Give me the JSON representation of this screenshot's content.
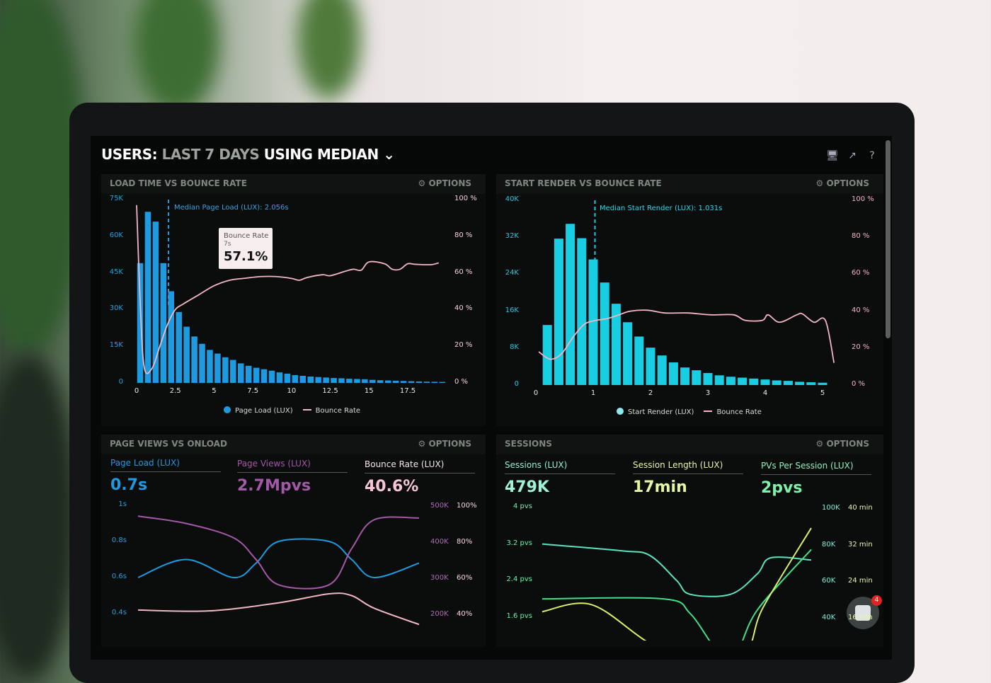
{
  "header": {
    "title_prefix": "USERS:",
    "title_range": "LAST 7 DAYS",
    "title_mid": "USING",
    "title_stat": "MEDIAN",
    "icons": [
      "monitor-icon",
      "share-icon",
      "help-icon"
    ]
  },
  "options_label": "⚙ OPTIONS",
  "colors": {
    "blue": "#1e9be0",
    "cyan": "#17c9e0",
    "pink": "#f2b6c4",
    "purple": "#a458a8",
    "teal": "#59e3c0",
    "green": "#3fe08a",
    "yellow": "#d8f06a"
  },
  "chat": {
    "badge": "4"
  },
  "chart_data": [
    {
      "type": "bar",
      "title": "LOAD TIME VS BOUNCE RATE",
      "annotation": "Median Page Load (LUX): 2.056s",
      "median": 2.056,
      "x_ticks": [
        "0",
        "2.5",
        "5",
        "7.5",
        "10",
        "12.5",
        "15",
        "17.5"
      ],
      "y_ticks": [
        "0",
        "15K",
        "30K",
        "45K",
        "60K",
        "75K"
      ],
      "y2_ticks": [
        "0 %",
        "20 %",
        "40 %",
        "60 %",
        "80 %",
        "100 %"
      ],
      "xlim": [
        0,
        19.8
      ],
      "ylim": [
        0,
        75000
      ],
      "y2lim": [
        0,
        100
      ],
      "legend": [
        "Page Load (LUX)",
        "Bounce Rate"
      ],
      "legend_placement": "bottom",
      "tooltip": {
        "series": "Bounce Rate",
        "x": "7s",
        "value": "57.1%"
      },
      "bars": {
        "name": "Page Load (LUX)",
        "x_start": 0,
        "x_step": 0.5,
        "values": [
          49000,
          70000,
          66000,
          49000,
          37500,
          29000,
          23000,
          19000,
          16000,
          13500,
          12000,
          10500,
          9400,
          8000,
          7000,
          6200,
          5600,
          5000,
          4300,
          3800,
          3200,
          2900,
          2600,
          2400,
          2200,
          2000,
          1900,
          1700,
          1600,
          1500,
          1250,
          1100,
          1000,
          900,
          800,
          700,
          600,
          500,
          450,
          400
        ]
      },
      "line": {
        "name": "Bounce Rate",
        "x": [
          0,
          0.25,
          0.5,
          1,
          1.5,
          2,
          2.5,
          3,
          4,
          5,
          6,
          7,
          8,
          9,
          10,
          10.5,
          11,
          12,
          12.5,
          13.5,
          14,
          14.5,
          15,
          16,
          16.5,
          17,
          17.5,
          18,
          19,
          19.5
        ],
        "y": [
          97,
          40,
          8,
          8,
          20,
          32,
          40,
          43,
          48,
          53,
          56,
          57.1,
          58,
          58,
          57,
          56,
          57.5,
          59,
          58.5,
          61,
          62,
          61.5,
          66,
          65,
          62,
          62,
          65,
          64.7,
          64.5,
          65.5
        ]
      }
    },
    {
      "type": "bar",
      "title": "START RENDER VS BOUNCE RATE",
      "annotation": "Median Start Render (LUX): 1.031s",
      "median": 1.031,
      "x_ticks": [
        "0",
        "1",
        "2",
        "3",
        "4",
        "5"
      ],
      "y_ticks": [
        "0",
        "8K",
        "16K",
        "24K",
        "32K",
        "40K"
      ],
      "y2_ticks": [
        "0 %",
        "20 %",
        "40 %",
        "60 %",
        "80 %",
        "100 %"
      ],
      "xlim": [
        0,
        5.2
      ],
      "ylim": [
        0,
        40000
      ],
      "y2lim": [
        0,
        100
      ],
      "legend": [
        "Start Render (LUX)",
        "Bounce Rate"
      ],
      "legend_placement": "bottom",
      "bars": {
        "name": "Start Render (LUX)",
        "x_start": 0.2,
        "x_step": 0.2,
        "values": [
          13000,
          31700,
          34900,
          31800,
          27200,
          22200,
          17600,
          13600,
          10500,
          8100,
          6400,
          4900,
          3800,
          3200,
          2600,
          2100,
          1800,
          1600,
          1400,
          1200,
          1000,
          900,
          700,
          600,
          500
        ]
      },
      "line": {
        "name": "Bounce Rate",
        "x": [
          0.05,
          0.25,
          0.45,
          0.65,
          0.85,
          1.05,
          1.25,
          1.45,
          1.65,
          1.95,
          2.25,
          2.65,
          3.05,
          3.45,
          3.65,
          3.95,
          4.05,
          4.25,
          4.55,
          4.65,
          4.85,
          5.05,
          5.2
        ],
        "y": [
          18,
          14,
          17,
          26,
          33,
          35,
          36,
          38,
          40,
          40.5,
          39,
          39,
          38,
          38,
          35,
          35,
          38,
          34,
          38,
          38.5,
          34,
          35,
          12
        ]
      }
    },
    {
      "type": "line",
      "title": "PAGE VIEWS VS ONLOAD",
      "metrics": [
        {
          "label": "Page Load (LUX)",
          "value": "0.7s"
        },
        {
          "label": "Page Views (LUX)",
          "value": "2.7Mpvs"
        },
        {
          "label": "Bounce Rate (LUX)",
          "value": "40.6%"
        }
      ],
      "y_ticks": [
        "0.4s",
        "0.6s",
        "0.8s",
        "1s"
      ],
      "y2_ticks": [
        "200K",
        "300K",
        "400K",
        "500K"
      ],
      "y3_ticks": [
        "40%",
        "60%",
        "80%",
        "100%"
      ],
      "ylim": [
        0.4,
        1.0
      ],
      "y2lim": [
        200000,
        500000
      ],
      "y3lim": [
        40,
        100
      ],
      "series": [
        {
          "name": "Page Load (LUX)",
          "axis": "y",
          "x": [
            0,
            0.17,
            0.34,
            0.42,
            0.5,
            0.68,
            0.76,
            0.84,
            1
          ],
          "y": [
            0.6,
            0.7,
            0.6,
            0.68,
            0.8,
            0.8,
            0.7,
            0.6,
            0.68
          ]
        },
        {
          "name": "Page Views (LUX)",
          "axis": "y2",
          "x": [
            0,
            0.17,
            0.34,
            0.42,
            0.5,
            0.68,
            0.76,
            0.84,
            1
          ],
          "y": [
            470000,
            450000,
            410000,
            350000,
            280000,
            280000,
            380000,
            460000,
            465000
          ]
        },
        {
          "name": "Bounce Rate (LUX)",
          "axis": "y3",
          "x": [
            0,
            0.25,
            0.5,
            0.68,
            0.76,
            0.84,
            1
          ],
          "y": [
            42,
            41.5,
            46,
            51,
            50,
            43,
            34
          ]
        }
      ]
    },
    {
      "type": "line",
      "title": "SESSIONS",
      "metrics": [
        {
          "label": "Sessions (LUX)",
          "value": "479K"
        },
        {
          "label": "Session Length (LUX)",
          "value": "17min"
        },
        {
          "label": "PVs Per Session (LUX)",
          "value": "2pvs"
        }
      ],
      "y_ticks": [
        "1.6 pvs",
        "2.4 pvs",
        "3.2 pvs",
        "4 pvs"
      ],
      "y2_ticks": [
        "40K",
        "60K",
        "80K",
        "100K"
      ],
      "y3_ticks": [
        "16 min",
        "24 min",
        "32 min",
        "40 min"
      ],
      "ylim": [
        1.6,
        4.0
      ],
      "y2lim": [
        40000,
        100000
      ],
      "y3lim": [
        16,
        40
      ],
      "series": [
        {
          "name": "PVs Per Session (LUX)",
          "axis": "y",
          "x": [
            0,
            0.3,
            0.4,
            0.5,
            0.55,
            0.7,
            0.8,
            0.85,
            1
          ],
          "y": [
            3.2,
            3.05,
            2.95,
            2.4,
            2.1,
            2.1,
            2.55,
            2.9,
            2.85
          ]
        },
        {
          "name": "Sessions (LUX)",
          "axis": "y2",
          "x": [
            0,
            0.45,
            0.55,
            0.65,
            0.72,
            0.8,
            1
          ],
          "y": [
            50000,
            50000,
            42000,
            22000,
            20000,
            44000,
            77000
          ]
        },
        {
          "name": "Session Length (LUX)",
          "axis": "y3",
          "x": [
            0,
            0.18,
            0.38,
            0.55,
            0.75,
            0.82,
            1
          ],
          "y": [
            17.2,
            18.8,
            11,
            5,
            8,
            18,
            35.5
          ]
        }
      ]
    }
  ]
}
